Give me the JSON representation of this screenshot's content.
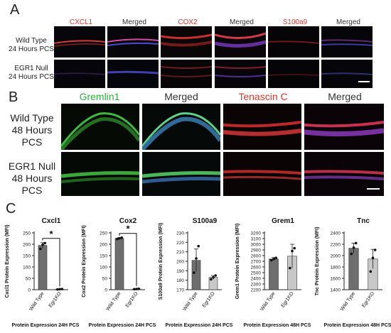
{
  "panel_a": {
    "letter": "A",
    "headers": [
      "CXCL1",
      "Merged",
      "COX2",
      "Merged",
      "S100a9",
      "Merged"
    ],
    "header_colors": [
      "#e0352b",
      "#333333",
      "#e0352b",
      "#333333",
      "#e0352b",
      "#333333"
    ],
    "rows": [
      {
        "line1": "Wild Type",
        "line2": "24 Hours PCS"
      },
      {
        "line1": "EGR1 Null",
        "line2": "24 Hours PCS"
      }
    ]
  },
  "panel_b": {
    "letter": "B",
    "headers": [
      "Gremlin1",
      "Merged",
      "Tenascin C",
      "Merged"
    ],
    "header_colors": [
      "#2fae3f",
      "#333333",
      "#e0352b",
      "#333333"
    ],
    "rows": [
      {
        "line1": "Wild Type",
        "line2": "48 Hours PCS"
      },
      {
        "line1": "EGR1 Null",
        "line2": "48 Hours PCS"
      }
    ]
  },
  "panel_c": {
    "letter": "C"
  },
  "chart_data": [
    {
      "type": "bar",
      "title": "Cxcl1",
      "ylabel": "Cxcl1 Protein Expression (MFI)",
      "xlabel": "Protein Expression 24H PCS",
      "categories": [
        "Wild Type",
        "Egr1KO"
      ],
      "values": [
        195,
        2
      ],
      "errors": [
        12,
        0
      ],
      "points": [
        [
          180,
          198,
          205
        ],
        [
          1,
          2,
          3
        ]
      ],
      "ylim": [
        0,
        250
      ],
      "yticks": [
        0,
        50,
        100,
        150,
        200,
        250
      ],
      "significance": "*",
      "bar_colors": [
        "#6e6e6e",
        "#c8c8c8"
      ]
    },
    {
      "type": "bar",
      "title": "Cox2",
      "ylabel": "Cox2 Protein Expression (MFI)",
      "xlabel": "Protein Expression 24H PCS",
      "categories": [
        "Wild Type",
        "Egr1KO"
      ],
      "values": [
        226,
        3
      ],
      "errors": [
        3,
        1
      ],
      "points": [
        [
          223,
          226,
          229
        ],
        [
          2,
          3,
          4
        ]
      ],
      "ylim": [
        0,
        250
      ],
      "yticks": [
        0,
        50,
        100,
        150,
        200,
        250
      ],
      "significance": "*",
      "bar_colors": [
        "#6e6e6e",
        "#c8c8c8"
      ]
    },
    {
      "type": "bar",
      "title": "S100a9",
      "ylabel": "S100a9 Protein Expression (MFI)",
      "xlabel": "Protein Expression 24H PCS",
      "categories": [
        "Wild Type",
        "Egr1KO"
      ],
      "values": [
        201,
        183
      ],
      "errors": [
        12,
        2
      ],
      "points": [
        [
          188,
          203,
          216
        ],
        [
          181,
          183,
          185
        ]
      ],
      "ylim": [
        170,
        230
      ],
      "yticks": [
        170,
        180,
        190,
        200,
        210,
        220,
        230
      ],
      "significance": "",
      "bar_colors": [
        "#6e6e6e",
        "#c8c8c8"
      ]
    },
    {
      "type": "bar",
      "title": "Grem1",
      "ylabel": "Grem1 Protein Expression (MFI)",
      "xlabel": "Protein Expression 48H PCS",
      "categories": [
        "Wild Type",
        "Egr1KO"
      ],
      "values": [
        2740,
        2790
      ],
      "errors": [
        25,
        210
      ],
      "points": [
        [
          2720,
          2740,
          2760
        ],
        [
          2580,
          2880,
          2930
        ]
      ],
      "ylim": [
        2200,
        3200
      ],
      "yticks": [
        2200,
        2300,
        2400,
        2500,
        2600,
        2700,
        2800,
        2900,
        3000,
        3100,
        3200
      ],
      "significance": "",
      "bar_colors": [
        "#6e6e6e",
        "#c8c8c8"
      ]
    },
    {
      "type": "bar",
      "title": "Tnc",
      "ylabel": "Tnc Protein Expression (MFI)",
      "xlabel": "Protein Expression 48H PCS",
      "categories": [
        "Wild Type",
        "Egr1KO"
      ],
      "values": [
        2130,
        1940
      ],
      "errors": [
        90,
        170
      ],
      "points": [
        [
          2030,
          2140,
          2220
        ],
        [
          1720,
          1960,
          2100
        ]
      ],
      "ylim": [
        1400,
        2400
      ],
      "yticks": [
        1400,
        1600,
        1800,
        2000,
        2200,
        2400
      ],
      "significance": "",
      "bar_colors": [
        "#6e6e6e",
        "#c8c8c8"
      ]
    }
  ]
}
